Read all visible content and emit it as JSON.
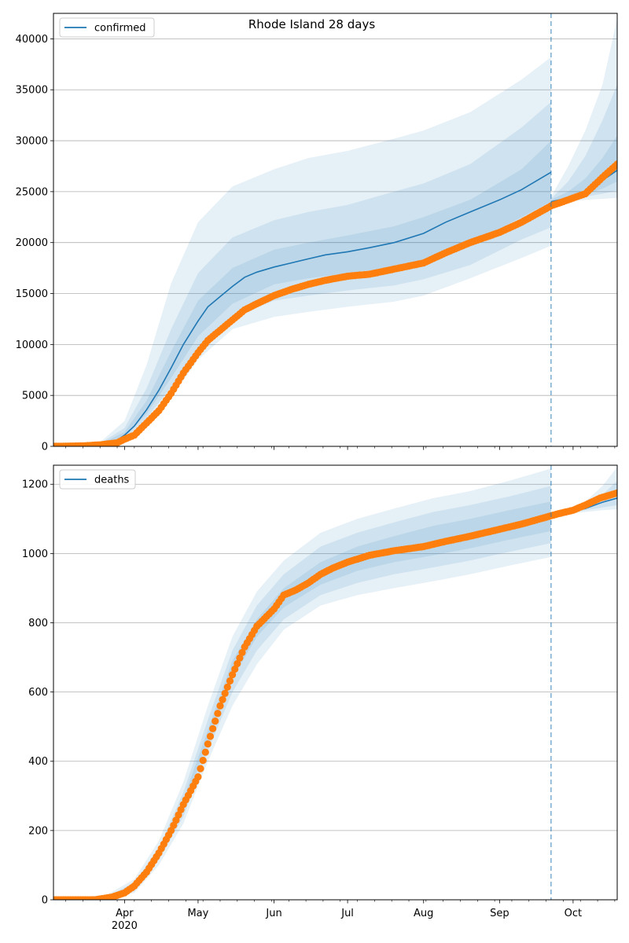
{
  "colors": {
    "model_line": "#1f77b4",
    "band": "#1f77b4",
    "observed": "#ff7f0e",
    "grid": "#b0b0b0",
    "forecast_marker": "#1f77b4"
  },
  "chart_data": [
    {
      "type": "line",
      "title": "Rhode Island 28 days",
      "legend": {
        "label": "confirmed",
        "placement": "top-left"
      },
      "xlim": [
        "2020-03-03",
        "2020-10-19"
      ],
      "ylim": [
        0,
        42500
      ],
      "yticks": [
        0,
        5000,
        10000,
        15000,
        20000,
        25000,
        30000,
        35000,
        40000
      ],
      "grid": "horizontal",
      "forecast_start": "2020-09-22",
      "series": [
        {
          "name": "confirmed",
          "kind": "model-median",
          "x": [
            "2020-03-03",
            "2020-03-15",
            "2020-03-22",
            "2020-03-29",
            "2020-04-01",
            "2020-04-05",
            "2020-04-10",
            "2020-04-15",
            "2020-04-20",
            "2020-04-25",
            "2020-05-01",
            "2020-05-05",
            "2020-05-10",
            "2020-05-15",
            "2020-05-20",
            "2020-05-25",
            "2020-06-01",
            "2020-06-08",
            "2020-06-15",
            "2020-06-22",
            "2020-07-01",
            "2020-07-10",
            "2020-07-20",
            "2020-08-01",
            "2020-08-10",
            "2020-08-20",
            "2020-09-01",
            "2020-09-10",
            "2020-09-22"
          ],
          "y": [
            0,
            50,
            150,
            600,
            1100,
            2000,
            3600,
            5500,
            7700,
            10000,
            12300,
            13700,
            14700,
            15700,
            16600,
            17100,
            17600,
            18000,
            18400,
            18800,
            19100,
            19500,
            20000,
            20900,
            22000,
            23000,
            24200,
            25200,
            26900
          ]
        },
        {
          "name": "confirmed-forecast",
          "kind": "model-median",
          "x": [
            "2020-09-22",
            "2020-09-29",
            "2020-10-06",
            "2020-10-13",
            "2020-10-19"
          ],
          "y": [
            24000,
            24400,
            25000,
            26100,
            27100
          ]
        },
        {
          "name": "band-outer",
          "kind": "band",
          "x": [
            "2020-03-03",
            "2020-03-22",
            "2020-04-01",
            "2020-04-10",
            "2020-04-20",
            "2020-05-01",
            "2020-05-15",
            "2020-06-01",
            "2020-06-15",
            "2020-07-01",
            "2020-07-20",
            "2020-08-01",
            "2020-08-20",
            "2020-09-10",
            "2020-09-22"
          ],
          "lower": [
            0,
            80,
            500,
            2300,
            4800,
            8500,
            11500,
            12700,
            13200,
            13700,
            14200,
            14800,
            16500,
            18500,
            19700
          ],
          "upper": [
            0,
            400,
            2500,
            8000,
            16000,
            22000,
            25500,
            27200,
            28300,
            29000,
            30200,
            31000,
            32800,
            36000,
            38200
          ]
        },
        {
          "name": "band-middle",
          "kind": "band",
          "x": [
            "2020-03-03",
            "2020-03-22",
            "2020-04-01",
            "2020-04-10",
            "2020-04-20",
            "2020-05-01",
            "2020-05-15",
            "2020-06-01",
            "2020-06-15",
            "2020-07-01",
            "2020-07-20",
            "2020-08-01",
            "2020-08-20",
            "2020-09-10",
            "2020-09-22"
          ],
          "lower": [
            0,
            100,
            700,
            2800,
            5800,
            9700,
            12700,
            14300,
            14800,
            15300,
            15800,
            16400,
            17800,
            20300,
            21500
          ],
          "upper": [
            0,
            300,
            1800,
            5700,
            11500,
            17000,
            20500,
            22200,
            23000,
            23700,
            25000,
            25800,
            27700,
            31300,
            33800
          ]
        },
        {
          "name": "band-inner",
          "kind": "band",
          "x": [
            "2020-03-03",
            "2020-03-22",
            "2020-04-01",
            "2020-04-10",
            "2020-04-20",
            "2020-05-01",
            "2020-05-15",
            "2020-06-01",
            "2020-06-15",
            "2020-07-01",
            "2020-07-20",
            "2020-08-01",
            "2020-08-20",
            "2020-09-10",
            "2020-09-22"
          ],
          "lower": [
            0,
            120,
            850,
            3200,
            6700,
            10800,
            14000,
            15900,
            16500,
            17000,
            17600,
            18300,
            19800,
            22500,
            24000
          ],
          "upper": [
            0,
            220,
            1400,
            4500,
            9300,
            14300,
            17500,
            19300,
            20000,
            20700,
            21600,
            22500,
            24200,
            27200,
            30000
          ]
        },
        {
          "name": "forecast-band-outer",
          "kind": "band",
          "x": [
            "2020-09-22",
            "2020-09-29",
            "2020-10-06",
            "2020-10-13",
            "2020-10-19"
          ],
          "lower": [
            23800,
            24000,
            24200,
            24300,
            24400
          ],
          "upper": [
            24500,
            27500,
            31000,
            35500,
            42000
          ]
        },
        {
          "name": "forecast-band-middle",
          "kind": "band",
          "x": [
            "2020-09-22",
            "2020-09-29",
            "2020-10-06",
            "2020-10-13",
            "2020-10-19"
          ],
          "lower": [
            23800,
            24100,
            24500,
            24800,
            25100
          ],
          "upper": [
            24300,
            26000,
            28500,
            32000,
            35500
          ]
        },
        {
          "name": "forecast-band-inner",
          "kind": "band",
          "x": [
            "2020-09-22",
            "2020-09-29",
            "2020-10-06",
            "2020-10-13",
            "2020-10-19"
          ],
          "lower": [
            23900,
            24200,
            24700,
            25300,
            26000
          ],
          "upper": [
            24200,
            25000,
            26300,
            28300,
            30500
          ]
        },
        {
          "name": "observed",
          "kind": "observed",
          "x": [
            "2020-03-03",
            "2020-03-15",
            "2020-03-22",
            "2020-03-29",
            "2020-04-01",
            "2020-04-05",
            "2020-04-10",
            "2020-04-15",
            "2020-04-20",
            "2020-04-25",
            "2020-05-01",
            "2020-05-05",
            "2020-05-10",
            "2020-05-15",
            "2020-05-20",
            "2020-05-25",
            "2020-06-01",
            "2020-06-08",
            "2020-06-15",
            "2020-06-22",
            "2020-07-01",
            "2020-07-10",
            "2020-07-20",
            "2020-08-01",
            "2020-08-10",
            "2020-08-20",
            "2020-09-01",
            "2020-09-10",
            "2020-09-22",
            "2020-09-29",
            "2020-10-06",
            "2020-10-13",
            "2020-10-19"
          ],
          "y": [
            0,
            50,
            150,
            350,
            700,
            1100,
            2300,
            3500,
            5200,
            7200,
            9200,
            10400,
            11400,
            12400,
            13400,
            14000,
            14800,
            15400,
            15900,
            16300,
            16700,
            16900,
            17400,
            18000,
            19000,
            20000,
            21000,
            22000,
            23600,
            24200,
            24800,
            26400,
            27700
          ]
        }
      ]
    },
    {
      "type": "line",
      "legend": {
        "label": "deaths",
        "placement": "top-left"
      },
      "xlim": [
        "2020-03-03",
        "2020-10-19"
      ],
      "ylim": [
        0,
        1255
      ],
      "yticks": [
        0,
        200,
        400,
        600,
        800,
        1000,
        1200
      ],
      "xticks": [
        "Apr",
        "May",
        "Jun",
        "Jul",
        "Aug",
        "Sep",
        "Oct"
      ],
      "xtick_dates": [
        "2020-04-01",
        "2020-05-01",
        "2020-06-01",
        "2020-07-01",
        "2020-08-01",
        "2020-09-01",
        "2020-10-01"
      ],
      "year_label": "2020",
      "grid": "horizontal",
      "forecast_start": "2020-09-22",
      "series": [
        {
          "name": "band-outer",
          "kind": "band",
          "x": [
            "2020-03-03",
            "2020-03-25",
            "2020-04-05",
            "2020-04-15",
            "2020-04-25",
            "2020-05-05",
            "2020-05-15",
            "2020-05-25",
            "2020-06-05",
            "2020-06-20",
            "2020-07-05",
            "2020-07-20",
            "2020-08-05",
            "2020-08-20",
            "2020-09-05",
            "2020-09-22"
          ],
          "lower": [
            0,
            0,
            20,
            100,
            220,
            400,
            560,
            680,
            780,
            850,
            880,
            900,
            920,
            940,
            965,
            990
          ],
          "upper": [
            0,
            15,
            60,
            170,
            340,
            560,
            760,
            890,
            980,
            1060,
            1100,
            1130,
            1160,
            1180,
            1210,
            1245
          ]
        },
        {
          "name": "band-middle",
          "kind": "band",
          "x": [
            "2020-03-03",
            "2020-03-25",
            "2020-04-05",
            "2020-04-15",
            "2020-04-25",
            "2020-05-05",
            "2020-05-15",
            "2020-05-25",
            "2020-06-05",
            "2020-06-20",
            "2020-07-05",
            "2020-07-20",
            "2020-08-05",
            "2020-08-20",
            "2020-09-05",
            "2020-09-22"
          ],
          "lower": [
            0,
            0,
            25,
            115,
            240,
            430,
            600,
            720,
            810,
            880,
            915,
            940,
            960,
            980,
            1005,
            1030
          ],
          "upper": [
            0,
            10,
            50,
            150,
            310,
            520,
            720,
            850,
            940,
            1020,
            1060,
            1090,
            1120,
            1140,
            1165,
            1195
          ]
        },
        {
          "name": "band-inner",
          "kind": "band",
          "x": [
            "2020-03-03",
            "2020-03-25",
            "2020-04-05",
            "2020-04-15",
            "2020-04-25",
            "2020-05-05",
            "2020-05-15",
            "2020-05-25",
            "2020-06-05",
            "2020-06-20",
            "2020-07-05",
            "2020-07-20",
            "2020-08-05",
            "2020-08-20",
            "2020-09-05",
            "2020-09-22"
          ],
          "lower": [
            0,
            2,
            30,
            125,
            260,
            460,
            640,
            760,
            845,
            910,
            950,
            975,
            995,
            1015,
            1040,
            1065
          ],
          "upper": [
            0,
            7,
            42,
            140,
            290,
            490,
            690,
            810,
            900,
            975,
            1020,
            1050,
            1080,
            1100,
            1125,
            1150
          ]
        },
        {
          "name": "forecast-band-outer",
          "kind": "band",
          "x": [
            "2020-09-22",
            "2020-09-29",
            "2020-10-06",
            "2020-10-13",
            "2020-10-19"
          ],
          "lower": [
            1110,
            1115,
            1120,
            1125,
            1128
          ],
          "upper": [
            1112,
            1125,
            1150,
            1195,
            1250
          ]
        },
        {
          "name": "forecast-band-middle",
          "kind": "band",
          "x": [
            "2020-09-22",
            "2020-09-29",
            "2020-10-06",
            "2020-10-13",
            "2020-10-19"
          ],
          "lower": [
            1110,
            1117,
            1125,
            1133,
            1140
          ],
          "upper": [
            1111,
            1122,
            1140,
            1170,
            1210
          ]
        },
        {
          "name": "deaths-forecast",
          "kind": "model-median",
          "x": [
            "2020-09-22",
            "2020-09-29",
            "2020-10-06",
            "2020-10-13",
            "2020-10-19"
          ],
          "y": [
            1110,
            1118,
            1130,
            1148,
            1160
          ]
        },
        {
          "name": "observed",
          "kind": "observed",
          "x": [
            "2020-03-03",
            "2020-03-20",
            "2020-03-27",
            "2020-04-01",
            "2020-04-05",
            "2020-04-10",
            "2020-04-15",
            "2020-04-20",
            "2020-04-25",
            "2020-05-01",
            "2020-05-05",
            "2020-05-10",
            "2020-05-15",
            "2020-05-20",
            "2020-05-25",
            "2020-06-01",
            "2020-06-05",
            "2020-06-10",
            "2020-06-15",
            "2020-06-20",
            "2020-06-25",
            "2020-07-01",
            "2020-07-10",
            "2020-07-20",
            "2020-08-01",
            "2020-08-10",
            "2020-08-20",
            "2020-09-01",
            "2020-09-10",
            "2020-09-20",
            "2020-09-25",
            "2020-10-01",
            "2020-10-06",
            "2020-10-12",
            "2020-10-19"
          ],
          "y": [
            0,
            0,
            8,
            20,
            40,
            80,
            135,
            200,
            275,
            355,
            450,
            560,
            650,
            730,
            790,
            840,
            880,
            895,
            915,
            940,
            958,
            975,
            995,
            1008,
            1020,
            1035,
            1050,
            1070,
            1085,
            1105,
            1115,
            1125,
            1140,
            1160,
            1175
          ]
        }
      ]
    }
  ]
}
